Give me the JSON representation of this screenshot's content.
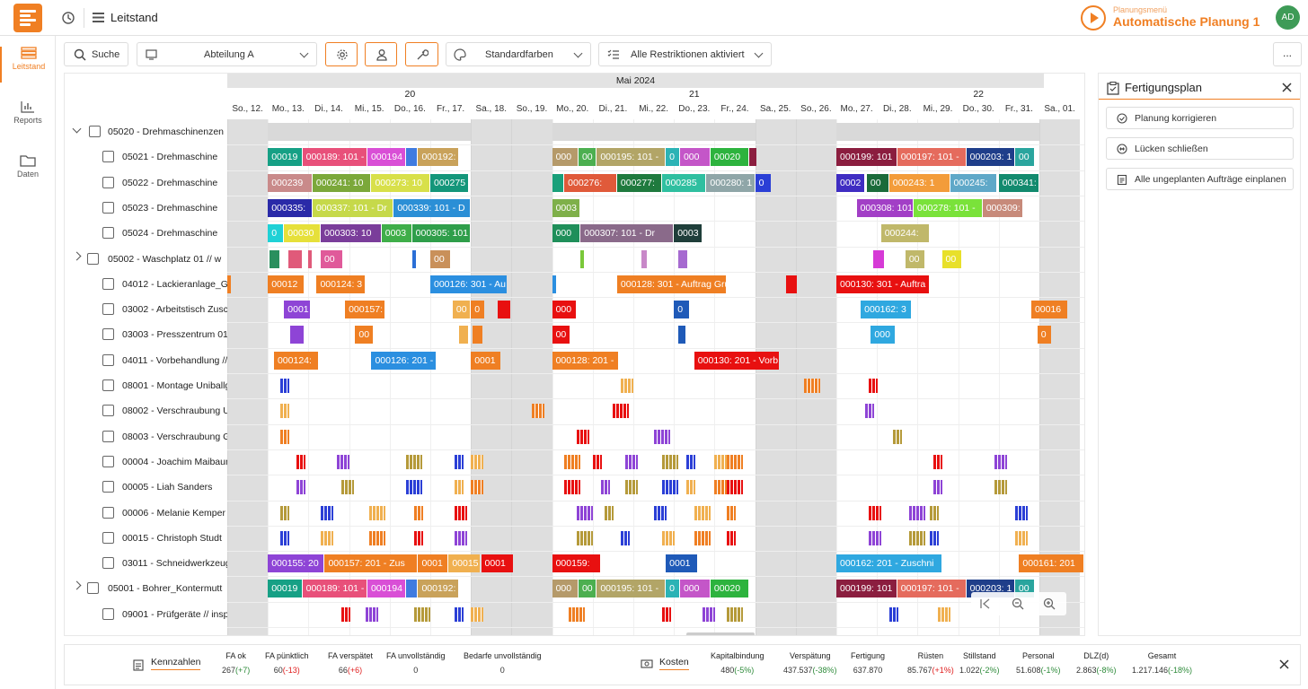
{
  "topbar": {
    "title": "Leitstand",
    "planning_menu": "Planungsmenü",
    "planning_name": "Automatische Planung 1",
    "avatar": "AD"
  },
  "sidenav": [
    {
      "label": "Leitstand",
      "icon": "grid-icon"
    },
    {
      "label": "Reports",
      "icon": "chart-icon"
    },
    {
      "label": "Daten",
      "icon": "folder-icon"
    }
  ],
  "toolbar": {
    "search": "Suche",
    "department": "Abteilung A",
    "colors": "Standardfarben",
    "restrictions": "Alle Restriktionen aktiviert",
    "more": "..."
  },
  "calendar": {
    "month": "Mai 2024",
    "weeks": [
      "20",
      "21",
      "22"
    ],
    "days": [
      "So., 12.",
      "Mo., 13.",
      "Di., 14.",
      "Mi., 15.",
      "Do., 16.",
      "Fr., 17.",
      "Sa., 18.",
      "So., 19.",
      "Mo., 20.",
      "Di., 21.",
      "Mi., 22.",
      "Do., 23.",
      "Fr., 24.",
      "Sa., 25.",
      "So., 26.",
      "Mo., 27.",
      "Di., 28.",
      "Mi., 29.",
      "Do., 30.",
      "Fr., 31.",
      "Sa., 01."
    ]
  },
  "rows": [
    {
      "label": "05020 - Drehmaschinenzen",
      "icon": "machine-group-icon",
      "expand": "v"
    },
    {
      "label": "05021 - Drehmaschine",
      "icon": "lathe-icon"
    },
    {
      "label": "05022 - Drehmaschine",
      "icon": "lathe-icon"
    },
    {
      "label": "05023 - Drehmaschine",
      "icon": "lathe-icon"
    },
    {
      "label": "05024 - Drehmaschine",
      "icon": "lathe-icon"
    },
    {
      "label": "05002 - Waschplatz 01 // w",
      "icon": "wash-icon",
      "expand": ">"
    },
    {
      "label": "04012 - Lackieranlage_Grun",
      "icon": "paint-icon"
    },
    {
      "label": "03002 - Arbeitstisch Zusch",
      "icon": "table-icon"
    },
    {
      "label": "03003 - Presszentrum 01 //",
      "icon": "press-icon"
    },
    {
      "label": "04011 - Vorbehandlung // p",
      "icon": "pretreat-icon"
    },
    {
      "label": "08001 - Montage Uniballgel",
      "icon": "assembly-icon"
    },
    {
      "label": "08002 - Verschraubung Uni",
      "icon": "screw-icon"
    },
    {
      "label": "08003 - Verschraubung Gas",
      "icon": "screw-icon"
    },
    {
      "label": "00004 - Joachim Maibaum",
      "icon": "person-icon"
    },
    {
      "label": "00005 - Liah Sanders",
      "icon": "person-icon"
    },
    {
      "label": "00006 - Melanie Kemper",
      "icon": "person-icon"
    },
    {
      "label": "00015 - Christoph Studt",
      "icon": "person-icon"
    },
    {
      "label": "03011 - Schneidwerkzeug 0",
      "icon": "knife-icon"
    },
    {
      "label": "05001 - Bohrer_Kontermutt",
      "icon": "drill-icon",
      "expand": ">"
    },
    {
      "label": "09001 - Prüfgeräte // inspe",
      "icon": "tester-icon"
    }
  ],
  "bars": [
    {
      "r": 1,
      "d": 1.0,
      "w": 0.85,
      "c": "#16a085",
      "t": "00019"
    },
    {
      "r": 1,
      "d": 1.85,
      "w": 1.6,
      "c": "#e8507a",
      "t": "000189: 101 -"
    },
    {
      "r": 1,
      "d": 3.45,
      "w": 0.95,
      "c": "#d94fd6",
      "t": "000194"
    },
    {
      "r": 1,
      "d": 4.4,
      "w": 0.3,
      "c": "#3f7be0",
      "t": ""
    },
    {
      "r": 1,
      "d": 4.7,
      "w": 1.0,
      "c": "#c9a25a",
      "t": "000192:"
    },
    {
      "r": 1,
      "d": 8.0,
      "w": 0.65,
      "c": "#b59a6a",
      "t": "000"
    },
    {
      "r": 1,
      "d": 8.65,
      "w": 0.45,
      "c": "#4caf50",
      "t": "00"
    },
    {
      "r": 1,
      "d": 9.1,
      "w": 1.7,
      "c": "#b2a567",
      "t": "000195: 101 -"
    },
    {
      "r": 1,
      "d": 10.8,
      "w": 0.35,
      "c": "#2bb3b5",
      "t": "0"
    },
    {
      "r": 1,
      "d": 11.15,
      "w": 0.75,
      "c": "#c456c8",
      "t": "000"
    },
    {
      "r": 1,
      "d": 11.9,
      "w": 0.95,
      "c": "#2db33e",
      "t": "00020"
    },
    {
      "r": 1,
      "d": 12.85,
      "w": 0.2,
      "c": "#8b1e3f",
      "t": ""
    },
    {
      "r": 1,
      "d": 15.0,
      "w": 1.5,
      "c": "#8b1e3f",
      "t": "000199: 101"
    },
    {
      "r": 1,
      "d": 16.5,
      "w": 1.7,
      "c": "#e56b5d",
      "t": "000197: 101 -"
    },
    {
      "r": 1,
      "d": 18.2,
      "w": 1.2,
      "c": "#1f3e8a",
      "t": "000203: 1"
    },
    {
      "r": 1,
      "d": 19.4,
      "w": 0.5,
      "c": "#2aa59e",
      "t": "00"
    },
    {
      "r": 2,
      "d": 1.0,
      "w": 1.1,
      "c": "#c98a8a",
      "t": "000239"
    },
    {
      "r": 2,
      "d": 2.1,
      "w": 1.45,
      "c": "#7ba83a",
      "t": "000241: 10"
    },
    {
      "r": 2,
      "d": 3.55,
      "w": 1.45,
      "c": "#d8e04a",
      "t": "000273: 10"
    },
    {
      "r": 2,
      "d": 5.0,
      "w": 0.95,
      "c": "#14967a",
      "t": "000275"
    },
    {
      "r": 2,
      "d": 8.0,
      "w": 0.3,
      "c": "#1aa07a",
      "t": ""
    },
    {
      "r": 2,
      "d": 8.3,
      "w": 1.3,
      "c": "#e05a3a",
      "t": "000276:"
    },
    {
      "r": 2,
      "d": 9.6,
      "w": 1.1,
      "c": "#1f7a3e",
      "t": "000277:"
    },
    {
      "r": 2,
      "d": 10.7,
      "w": 1.1,
      "c": "#2fbfa0",
      "t": "000285"
    },
    {
      "r": 2,
      "d": 11.8,
      "w": 1.2,
      "c": "#8fa6a8",
      "t": "000280: 1"
    },
    {
      "r": 2,
      "d": 13.0,
      "w": 0.4,
      "c": "#2a3fd6",
      "t": "0"
    },
    {
      "r": 2,
      "d": 15.0,
      "w": 0.7,
      "c": "#3f2dc2",
      "t": "0002"
    },
    {
      "r": 2,
      "d": 15.75,
      "w": 0.55,
      "c": "#1b6b3a",
      "t": "00"
    },
    {
      "r": 2,
      "d": 16.3,
      "w": 1.5,
      "c": "#f39c3a",
      "t": "000243: 1"
    },
    {
      "r": 2,
      "d": 17.8,
      "w": 1.15,
      "c": "#5fa8c8",
      "t": "000245:"
    },
    {
      "r": 2,
      "d": 19.0,
      "w": 1.0,
      "c": "#128a6e",
      "t": "000341:"
    },
    {
      "r": 3,
      "d": 1.0,
      "w": 1.1,
      "c": "#2a2aa8",
      "t": "000335:"
    },
    {
      "r": 3,
      "d": 2.1,
      "w": 2.0,
      "c": "#c6d94a",
      "t": "000337: 101 - Dr"
    },
    {
      "r": 3,
      "d": 4.1,
      "w": 1.9,
      "c": "#2b8fd6",
      "t": "000339: 101 - D"
    },
    {
      "r": 3,
      "d": 8.0,
      "w": 0.7,
      "c": "#7fb04a",
      "t": "0003"
    },
    {
      "r": 3,
      "d": 15.5,
      "w": 1.4,
      "c": "#a23fc6",
      "t": "000308: 101"
    },
    {
      "r": 3,
      "d": 16.9,
      "w": 1.7,
      "c": "#7ae23a",
      "t": "000278: 101 -"
    },
    {
      "r": 3,
      "d": 18.6,
      "w": 1.0,
      "c": "#c78a7a",
      "t": "000309:"
    },
    {
      "r": 4,
      "d": 1.0,
      "w": 0.4,
      "c": "#1fd1d6",
      "t": "0"
    },
    {
      "r": 4,
      "d": 1.4,
      "w": 0.9,
      "c": "#e6e03a",
      "t": "00030"
    },
    {
      "r": 4,
      "d": 2.3,
      "w": 1.5,
      "c": "#7a3d9a",
      "t": "000303: 10"
    },
    {
      "r": 4,
      "d": 3.8,
      "w": 0.75,
      "c": "#3fae49",
      "t": "0003"
    },
    {
      "r": 4,
      "d": 4.55,
      "w": 1.45,
      "c": "#2f9e4a",
      "t": "000305: 101"
    },
    {
      "r": 4,
      "d": 8.0,
      "w": 0.7,
      "c": "#1f8f5a",
      "t": "000"
    },
    {
      "r": 4,
      "d": 8.7,
      "w": 2.3,
      "c": "#8a6a8a",
      "t": "000307: 101 - Dr"
    },
    {
      "r": 4,
      "d": 11.0,
      "w": 0.7,
      "c": "#1f3e3a",
      "t": "0003"
    },
    {
      "r": 4,
      "d": 16.1,
      "w": 1.2,
      "c": "#c0b86a",
      "t": "000244:"
    },
    {
      "r": 5,
      "d": 1.05,
      "w": 0.25,
      "c": "#2a8f5e",
      "t": ""
    },
    {
      "r": 5,
      "d": 1.5,
      "w": 0.35,
      "c": "#e05a7a",
      "t": ""
    },
    {
      "r": 5,
      "d": 2.0,
      "w": 0.06,
      "c": "#e05a7a",
      "t": ""
    },
    {
      "r": 5,
      "d": 2.3,
      "w": 0.55,
      "c": "#e05a9a",
      "t": "00"
    },
    {
      "r": 5,
      "d": 4.55,
      "w": 0.1,
      "c": "#2b6fd6",
      "t": ""
    },
    {
      "r": 5,
      "d": 5.0,
      "w": 0.5,
      "c": "#c9905a",
      "t": "00"
    },
    {
      "r": 5,
      "d": 8.7,
      "w": 0.1,
      "c": "#7ac83a",
      "t": ""
    },
    {
      "r": 5,
      "d": 10.2,
      "w": 0.15,
      "c": "#c888c8",
      "t": ""
    },
    {
      "r": 5,
      "d": 11.1,
      "w": 0.25,
      "c": "#a66ad0",
      "t": ""
    },
    {
      "r": 5,
      "d": 15.9,
      "w": 0.3,
      "c": "#d63ad6",
      "t": ""
    },
    {
      "r": 5,
      "d": 16.7,
      "w": 0.5,
      "c": "#c0b86a",
      "t": "00"
    },
    {
      "r": 5,
      "d": 17.6,
      "w": 0.5,
      "c": "#e8e02a",
      "t": "00"
    },
    {
      "r": 6,
      "d": 0.0,
      "w": 0.1,
      "c": "#f07f23",
      "t": ""
    },
    {
      "r": 6,
      "d": 1.0,
      "w": 0.9,
      "c": "#ef7f23",
      "t": "00012"
    },
    {
      "r": 6,
      "d": 2.2,
      "w": 1.2,
      "c": "#ef7f23",
      "t": "000124: 3"
    },
    {
      "r": 6,
      "d": 5.0,
      "w": 1.9,
      "c": "#2b8fe0",
      "t": "000126: 301 - Au"
    },
    {
      "r": 6,
      "d": 8.0,
      "w": 0.04,
      "c": "#2b8fe0",
      "t": ""
    },
    {
      "r": 6,
      "d": 9.6,
      "w": 2.7,
      "c": "#ef7f23",
      "t": "000128: 301 - Auftrag Gru"
    },
    {
      "r": 6,
      "d": 13.75,
      "w": 0.3,
      "c": "#e81010",
      "t": ""
    },
    {
      "r": 6,
      "d": 15.0,
      "w": 2.3,
      "c": "#e81010",
      "t": "000130: 301 - Auftra"
    },
    {
      "r": 7,
      "d": 1.4,
      "w": 0.65,
      "c": "#8e44d6",
      "t": "0001"
    },
    {
      "r": 7,
      "d": 2.9,
      "w": 1.0,
      "c": "#ef7f23",
      "t": "000157:"
    },
    {
      "r": 7,
      "d": 5.55,
      "w": 0.45,
      "c": "#f0b050",
      "t": "00"
    },
    {
      "r": 7,
      "d": 6.0,
      "w": 0.35,
      "c": "#ef7f23",
      "t": "0"
    },
    {
      "r": 7,
      "d": 6.65,
      "w": 0.35,
      "c": "#e81010",
      "t": ""
    },
    {
      "r": 7,
      "d": 8.0,
      "w": 0.6,
      "c": "#e81010",
      "t": "000"
    },
    {
      "r": 7,
      "d": 11.0,
      "w": 0.4,
      "c": "#1f5ab8",
      "t": "0"
    },
    {
      "r": 7,
      "d": 15.6,
      "w": 1.25,
      "c": "#2fa8e0",
      "t": "000162: 3"
    },
    {
      "r": 7,
      "d": 19.8,
      "w": 0.9,
      "c": "#ef7f23",
      "t": "00016"
    },
    {
      "r": 8,
      "d": 1.55,
      "w": 0.35,
      "c": "#8e44d6",
      "t": ""
    },
    {
      "r": 8,
      "d": 3.15,
      "w": 0.45,
      "c": "#ef7f23",
      "t": "00"
    },
    {
      "r": 8,
      "d": 5.7,
      "w": 0.25,
      "c": "#f0b050",
      "t": ""
    },
    {
      "r": 8,
      "d": 6.05,
      "w": 0.25,
      "c": "#ef7f23",
      "t": ""
    },
    {
      "r": 8,
      "d": 8.0,
      "w": 0.45,
      "c": "#e81010",
      "t": "00"
    },
    {
      "r": 8,
      "d": 11.1,
      "w": 0.2,
      "c": "#1f5ab8",
      "t": ""
    },
    {
      "r": 8,
      "d": 15.85,
      "w": 0.6,
      "c": "#2fa8e0",
      "t": "000"
    },
    {
      "r": 8,
      "d": 19.95,
      "w": 0.35,
      "c": "#ef7f23",
      "t": "0"
    },
    {
      "r": 9,
      "d": 1.15,
      "w": 1.1,
      "c": "#ef7f23",
      "t": "000124:"
    },
    {
      "r": 9,
      "d": 3.55,
      "w": 1.6,
      "c": "#2b8fe0",
      "t": "000126: 201 -"
    },
    {
      "r": 9,
      "d": 6.0,
      "w": 0.75,
      "c": "#ef7f23",
      "t": "0001"
    },
    {
      "r": 9,
      "d": 8.0,
      "w": 1.65,
      "c": "#ef7f23",
      "t": "000128: 201 -"
    },
    {
      "r": 9,
      "d": 11.5,
      "w": 2.1,
      "c": "#e81010",
      "t": "000130: 201 - Vorb"
    },
    {
      "r": 17,
      "d": 1.0,
      "w": 1.4,
      "c": "#8e44d6",
      "t": "000155: 20"
    },
    {
      "r": 17,
      "d": 2.4,
      "w": 2.3,
      "c": "#ef7f23",
      "t": "000157: 201 - Zus"
    },
    {
      "r": 17,
      "d": 4.7,
      "w": 0.75,
      "c": "#ef7f23",
      "t": "0001"
    },
    {
      "r": 17,
      "d": 5.45,
      "w": 0.8,
      "c": "#f0b050",
      "t": "00015"
    },
    {
      "r": 17,
      "d": 6.25,
      "w": 0.8,
      "c": "#e81010",
      "t": "0001"
    },
    {
      "r": 17,
      "d": 8.0,
      "w": 1.2,
      "c": "#e81010",
      "t": "000159:"
    },
    {
      "r": 17,
      "d": 10.8,
      "w": 0.8,
      "c": "#1f5ab8",
      "t": "0001"
    },
    {
      "r": 17,
      "d": 15.0,
      "w": 2.6,
      "c": "#2fa8e0",
      "t": "000162: 201 - Zuschni"
    },
    {
      "r": 17,
      "d": 19.5,
      "w": 1.6,
      "c": "#ef7f23",
      "t": "000161: 201"
    },
    {
      "r": 18,
      "d": 1.0,
      "w": 0.85,
      "c": "#16a085",
      "t": "00019"
    },
    {
      "r": 18,
      "d": 1.85,
      "w": 1.6,
      "c": "#e8507a",
      "t": "000189: 101 -"
    },
    {
      "r": 18,
      "d": 3.45,
      "w": 0.95,
      "c": "#d94fd6",
      "t": "000194"
    },
    {
      "r": 18,
      "d": 4.4,
      "w": 0.3,
      "c": "#3f7be0",
      "t": ""
    },
    {
      "r": 18,
      "d": 4.7,
      "w": 1.0,
      "c": "#c9a25a",
      "t": "000192:"
    },
    {
      "r": 18,
      "d": 8.0,
      "w": 0.65,
      "c": "#b59a6a",
      "t": "000"
    },
    {
      "r": 18,
      "d": 8.65,
      "w": 0.45,
      "c": "#4caf50",
      "t": "00"
    },
    {
      "r": 18,
      "d": 9.1,
      "w": 1.7,
      "c": "#b2a567",
      "t": "000195: 101 -"
    },
    {
      "r": 18,
      "d": 10.8,
      "w": 0.35,
      "c": "#2bb3b5",
      "t": "0"
    },
    {
      "r": 18,
      "d": 11.15,
      "w": 0.75,
      "c": "#c456c8",
      "t": "000"
    },
    {
      "r": 18,
      "d": 11.9,
      "w": 0.95,
      "c": "#2db33e",
      "t": "00020"
    },
    {
      "r": 18,
      "d": 15.0,
      "w": 1.5,
      "c": "#8b1e3f",
      "t": "000199: 101"
    },
    {
      "r": 18,
      "d": 16.5,
      "w": 1.7,
      "c": "#e56b5d",
      "t": "000197: 101 -"
    },
    {
      "r": 18,
      "d": 18.2,
      "w": 1.2,
      "c": "#1f3e8a",
      "t": "000203: 1"
    },
    {
      "r": 18,
      "d": 19.4,
      "w": 0.5,
      "c": "#2aa59e",
      "t": "00"
    }
  ],
  "panel": {
    "title": "Fertigungsplan",
    "buttons": [
      "Planung korrigieren",
      "Lücken schließen",
      "Alle ungeplanten Aufträge einplanen"
    ]
  },
  "kpi": {
    "kennzahlen_label": "Kennzahlen",
    "kosten_label": "Kosten",
    "left": [
      {
        "label": "FA ok",
        "value": "267",
        "delta": "(+7)",
        "tone": "pos"
      },
      {
        "label": "FA pünktlich",
        "value": "60",
        "delta": "(-13)",
        "tone": "neg"
      },
      {
        "label": "FA verspätet",
        "value": "66",
        "delta": "(+6)",
        "tone": "neg"
      },
      {
        "label": "FA unvollständig",
        "value": "0",
        "delta": "",
        "tone": ""
      },
      {
        "label": "Bedarfe unvollständig",
        "value": "0",
        "delta": "",
        "tone": ""
      }
    ],
    "right": [
      {
        "label": "Kapitalbindung",
        "value": "480",
        "delta": "(-5%)",
        "tone": "pos"
      },
      {
        "label": "Verspätung",
        "value": "437.537",
        "delta": "(-38%)",
        "tone": "pos"
      },
      {
        "label": "Fertigung",
        "value": "637.870",
        "delta": "",
        "tone": ""
      },
      {
        "label": "Rüsten",
        "value": "85.767",
        "delta": "(+1%)",
        "tone": "neg"
      },
      {
        "label": "Stillstand",
        "value": "1.022",
        "delta": "(-2%)",
        "tone": "pos"
      },
      {
        "label": "Personal",
        "value": "51.608",
        "delta": "(-1%)",
        "tone": "pos"
      },
      {
        "label": "DLZ(d)",
        "value": "2.863",
        "delta": "(-8%)",
        "tone": "pos"
      },
      {
        "label": "Gesamt",
        "value": "1.217.146",
        "delta": "(-18%)",
        "tone": "pos"
      }
    ]
  },
  "colors": {
    "accent": "#f07f23",
    "weekend": "#dedede"
  }
}
